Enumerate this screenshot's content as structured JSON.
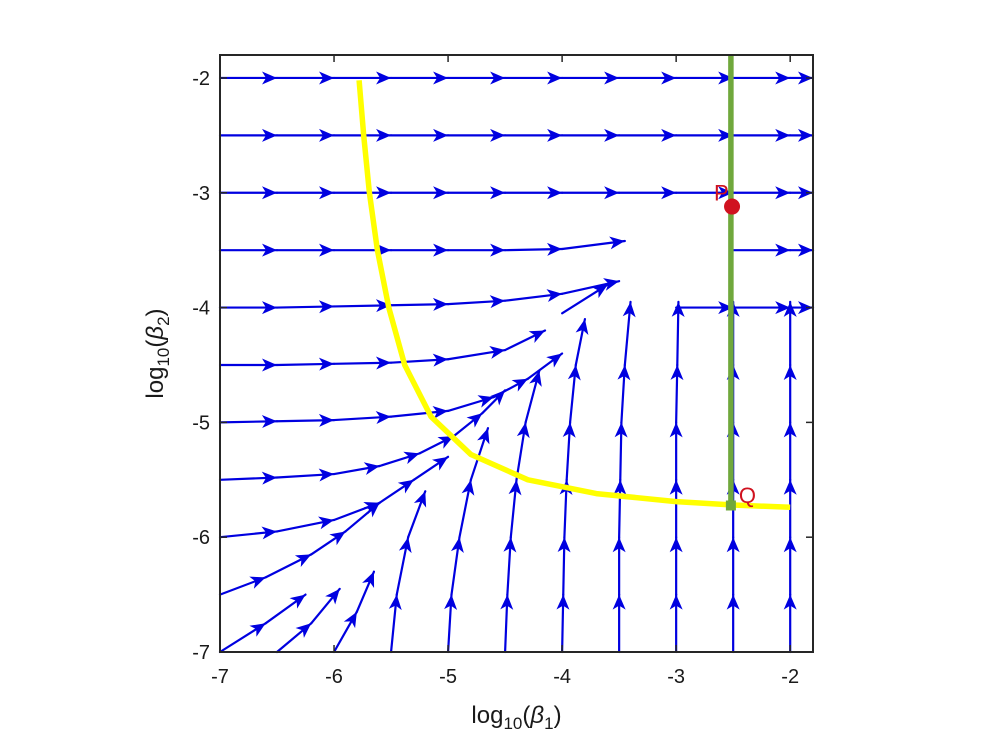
{
  "chart_data": {
    "type": "quiver",
    "title": "",
    "xlabel": {
      "base": "log",
      "sub": "10",
      "open": "(",
      "symbol": "β",
      "symbol_sub": "1",
      "close": ")"
    },
    "ylabel": {
      "base": "log",
      "sub": "10",
      "open": "(",
      "symbol": "β",
      "symbol_sub": "2",
      "close": ")"
    },
    "xlim": [
      -7,
      -1.8
    ],
    "ylim": [
      -7,
      -1.8
    ],
    "xticks": [
      -7,
      -6,
      -5,
      -4,
      -3,
      -2
    ],
    "yticks": [
      -7,
      -6,
      -5,
      -4,
      -3,
      -2
    ],
    "xtick_labels": [
      "-7",
      "-6",
      "-5",
      "-4",
      "-3",
      "-2"
    ],
    "ytick_labels": [
      "-7",
      "-6",
      "-5",
      "-4",
      "-3",
      "-2"
    ],
    "grid": false,
    "legend": "none",
    "vector_field": {
      "color": "#0000e0",
      "description_rows": [
        {
          "y0": -2.0,
          "segments": [
            [
              -7,
              -2.0,
              -6.5,
              -2.0
            ],
            [
              -6.5,
              -2.0,
              -6.0,
              -2.0
            ],
            [
              -6.0,
              -2.0,
              -5.5,
              -2.0
            ],
            [
              -5.5,
              -2.0,
              -5.0,
              -2.0
            ],
            [
              -5.0,
              -2.0,
              -4.5,
              -2.0
            ],
            [
              -4.5,
              -2.0,
              -4.0,
              -2.0
            ],
            [
              -4.0,
              -2.0,
              -3.5,
              -2.0
            ],
            [
              -3.5,
              -2.0,
              -3.0,
              -2.0
            ],
            [
              -3.0,
              -2.0,
              -2.5,
              -2.0
            ],
            [
              -2.5,
              -2.0,
              -2.0,
              -2.0
            ],
            [
              -2.0,
              -2.0,
              -1.8,
              -2.0
            ]
          ]
        },
        {
          "y0": -2.5,
          "segments": [
            [
              -7,
              -2.5,
              -6.5,
              -2.5
            ],
            [
              -6.5,
              -2.5,
              -6.0,
              -2.5
            ],
            [
              -6.0,
              -2.5,
              -5.5,
              -2.5
            ],
            [
              -5.5,
              -2.5,
              -5.0,
              -2.5
            ],
            [
              -5.0,
              -2.5,
              -4.5,
              -2.5
            ],
            [
              -4.5,
              -2.5,
              -4.0,
              -2.5
            ],
            [
              -4.0,
              -2.5,
              -3.5,
              -2.5
            ],
            [
              -3.5,
              -2.5,
              -3.0,
              -2.5
            ],
            [
              -3.0,
              -2.5,
              -2.5,
              -2.5
            ],
            [
              -2.5,
              -2.5,
              -2.0,
              -2.5
            ],
            [
              -2.0,
              -2.5,
              -1.8,
              -2.5
            ]
          ]
        },
        {
          "y0": -3.0,
          "segments": [
            [
              -7,
              -3.0,
              -6.5,
              -3.0
            ],
            [
              -6.5,
              -3.0,
              -6.0,
              -3.0
            ],
            [
              -6.0,
              -3.0,
              -5.5,
              -3.0
            ],
            [
              -5.5,
              -3.0,
              -5.0,
              -3.0
            ],
            [
              -5.0,
              -3.0,
              -4.5,
              -3.0
            ],
            [
              -4.5,
              -3.0,
              -4.0,
              -3.0
            ],
            [
              -4.0,
              -3.0,
              -3.5,
              -3.0
            ],
            [
              -3.5,
              -3.0,
              -3.0,
              -3.0
            ],
            [
              -3.0,
              -3.0,
              -2.5,
              -3.0
            ],
            [
              -2.5,
              -3.0,
              -2.0,
              -3.0
            ],
            [
              -2.0,
              -3.0,
              -1.8,
              -3.0
            ]
          ]
        },
        {
          "y0": -3.5,
          "segments": [
            [
              -7,
              -3.5,
              -6.5,
              -3.5
            ],
            [
              -6.5,
              -3.5,
              -6.0,
              -3.5
            ],
            [
              -6.0,
              -3.5,
              -5.5,
              -3.5
            ],
            [
              -5.5,
              -3.5,
              -5.0,
              -3.5
            ],
            [
              -5.0,
              -3.5,
              -4.5,
              -3.5
            ],
            [
              -4.5,
              -3.5,
              -4.0,
              -3.49
            ],
            [
              -4.0,
              -3.49,
              -3.45,
              -3.42
            ],
            [
              -2.5,
              -3.5,
              -2.0,
              -3.5
            ],
            [
              -2.0,
              -3.5,
              -1.8,
              -3.5
            ]
          ]
        },
        {
          "y0": -4.0,
          "segments": [
            [
              -7,
              -4.0,
              -6.5,
              -4.0
            ],
            [
              -6.5,
              -4.0,
              -6.0,
              -3.99
            ],
            [
              -6.0,
              -3.99,
              -5.5,
              -3.98
            ],
            [
              -5.5,
              -3.98,
              -5.0,
              -3.97
            ],
            [
              -5.0,
              -3.97,
              -4.5,
              -3.94
            ],
            [
              -4.5,
              -3.94,
              -4.0,
              -3.88
            ],
            [
              -4.0,
              -3.88,
              -3.5,
              -3.77
            ],
            [
              -3.0,
              -4.0,
              -2.5,
              -4.0
            ],
            [
              -2.5,
              -4.0,
              -2.0,
              -4.0
            ],
            [
              -2.0,
              -4.0,
              -1.8,
              -4.0
            ]
          ]
        },
        {
          "y0": -4.5,
          "segments": [
            [
              -7,
              -4.5,
              -6.5,
              -4.5
            ],
            [
              -6.5,
              -4.5,
              -6.0,
              -4.49
            ],
            [
              -6.0,
              -4.49,
              -5.5,
              -4.48
            ],
            [
              -5.5,
              -4.48,
              -5.0,
              -4.45
            ],
            [
              -5.0,
              -4.45,
              -4.5,
              -4.37
            ],
            [
              -4.5,
              -4.37,
              -4.15,
              -4.2
            ],
            [
              -4.0,
              -4.05,
              -3.6,
              -3.8
            ]
          ]
        },
        {
          "y0": -5.0,
          "segments": [
            [
              -7,
              -5.0,
              -6.5,
              -4.99
            ],
            [
              -6.5,
              -4.99,
              -6.0,
              -4.98
            ],
            [
              -6.0,
              -4.98,
              -5.5,
              -4.95
            ],
            [
              -5.5,
              -4.95,
              -5.0,
              -4.9
            ],
            [
              -5.0,
              -4.9,
              -4.6,
              -4.78
            ],
            [
              -4.6,
              -4.78,
              -4.3,
              -4.62
            ],
            [
              -4.3,
              -4.62,
              -4.0,
              -4.4
            ]
          ]
        },
        {
          "y0": -5.5,
          "segments": [
            [
              -7,
              -5.5,
              -6.5,
              -5.48
            ],
            [
              -6.5,
              -5.48,
              -6.0,
              -5.45
            ],
            [
              -6.0,
              -5.45,
              -5.6,
              -5.38
            ],
            [
              -5.6,
              -5.38,
              -5.25,
              -5.27
            ],
            [
              -5.25,
              -5.27,
              -4.95,
              -5.12
            ],
            [
              -4.95,
              -5.12,
              -4.7,
              -4.92
            ],
            [
              -4.7,
              -4.92,
              -4.5,
              -4.72
            ]
          ]
        },
        {
          "y0": -6.0,
          "segments": [
            [
              -7,
              -6.0,
              -6.5,
              -5.95
            ],
            [
              -6.5,
              -5.95,
              -6.0,
              -5.85
            ],
            [
              -6.0,
              -5.85,
              -5.6,
              -5.7
            ],
            [
              -5.6,
              -5.7,
              -5.3,
              -5.5
            ],
            [
              -5.3,
              -5.5,
              -5.0,
              -5.3
            ]
          ]
        },
        {
          "y0": -6.5,
          "segments": [
            [
              -7,
              -6.5,
              -6.6,
              -6.35
            ],
            [
              -6.6,
              -6.35,
              -6.2,
              -6.15
            ],
            [
              -6.2,
              -6.15,
              -5.9,
              -5.95
            ],
            [
              -5.9,
              -5.95,
              -5.6,
              -5.7
            ]
          ]
        },
        {
          "y0": -7.0,
          "segments": [
            [
              -7,
              -7.0,
              -6.6,
              -6.75
            ],
            [
              -6.6,
              -6.75,
              -6.25,
              -6.5
            ],
            [
              -6.5,
              -7.0,
              -6.2,
              -6.75
            ],
            [
              -6.2,
              -6.75,
              -5.95,
              -6.45
            ],
            [
              -6.0,
              -7.0,
              -5.8,
              -6.65
            ],
            [
              -5.8,
              -6.65,
              -5.65,
              -6.3
            ]
          ]
        }
      ],
      "columns": [
        {
          "x0": -5.5,
          "segments": [
            [
              -5.5,
              -7.0,
              -5.45,
              -6.5
            ],
            [
              -5.45,
              -6.5,
              -5.35,
              -6.0
            ],
            [
              -5.35,
              -6.0,
              -5.2,
              -5.6
            ]
          ]
        },
        {
          "x0": -5.0,
          "segments": [
            [
              -5.0,
              -7.0,
              -4.97,
              -6.5
            ],
            [
              -4.97,
              -6.5,
              -4.9,
              -6.0
            ],
            [
              -4.9,
              -6.0,
              -4.8,
              -5.5
            ],
            [
              -4.8,
              -5.5,
              -4.65,
              -5.05
            ]
          ]
        },
        {
          "x0": -4.5,
          "segments": [
            [
              -4.5,
              -7.0,
              -4.48,
              -6.5
            ],
            [
              -4.48,
              -6.5,
              -4.45,
              -6.0
            ],
            [
              -4.45,
              -6.0,
              -4.4,
              -5.5
            ],
            [
              -4.4,
              -5.5,
              -4.32,
              -5.0
            ],
            [
              -4.32,
              -5.0,
              -4.2,
              -4.55
            ]
          ]
        },
        {
          "x0": -4.0,
          "segments": [
            [
              -4.0,
              -7.0,
              -3.99,
              -6.5
            ],
            [
              -3.99,
              -6.5,
              -3.98,
              -6.0
            ],
            [
              -3.98,
              -6.0,
              -3.96,
              -5.5
            ],
            [
              -3.96,
              -5.5,
              -3.93,
              -5.0
            ],
            [
              -3.93,
              -5.0,
              -3.88,
              -4.5
            ],
            [
              -3.88,
              -4.5,
              -3.8,
              -4.1
            ]
          ]
        },
        {
          "x0": -3.5,
          "segments": [
            [
              -3.5,
              -7.0,
              -3.5,
              -6.5
            ],
            [
              -3.5,
              -6.5,
              -3.5,
              -6.0
            ],
            [
              -3.5,
              -6.0,
              -3.49,
              -5.5
            ],
            [
              -3.49,
              -5.5,
              -3.48,
              -5.0
            ],
            [
              -3.48,
              -5.0,
              -3.45,
              -4.5
            ],
            [
              -3.45,
              -4.5,
              -3.4,
              -3.95
            ]
          ]
        },
        {
          "x0": -3.0,
          "segments": [
            [
              -3.0,
              -7.0,
              -3.0,
              -6.5
            ],
            [
              -3.0,
              -6.5,
              -3.0,
              -6.0
            ],
            [
              -3.0,
              -6.0,
              -3.0,
              -5.5
            ],
            [
              -3.0,
              -5.5,
              -3.0,
              -5.0
            ],
            [
              -3.0,
              -5.0,
              -2.99,
              -4.5
            ],
            [
              -2.99,
              -4.5,
              -2.98,
              -3.95
            ]
          ]
        },
        {
          "x0": -2.5,
          "segments": [
            [
              -2.5,
              -7.0,
              -2.5,
              -6.5
            ],
            [
              -2.5,
              -6.5,
              -2.5,
              -6.0
            ],
            [
              -2.5,
              -6.0,
              -2.5,
              -5.5
            ],
            [
              -2.5,
              -5.5,
              -2.5,
              -5.0
            ],
            [
              -2.5,
              -5.0,
              -2.5,
              -4.5
            ],
            [
              -2.5,
              -4.5,
              -2.5,
              -3.95
            ]
          ]
        },
        {
          "x0": -2.0,
          "segments": [
            [
              -2.0,
              -7.0,
              -2.0,
              -6.5
            ],
            [
              -2.0,
              -6.5,
              -2.0,
              -6.0
            ],
            [
              -2.0,
              -6.0,
              -2.0,
              -5.5
            ],
            [
              -2.0,
              -5.5,
              -2.0,
              -5.0
            ],
            [
              -2.0,
              -5.0,
              -2.0,
              -4.5
            ],
            [
              -2.0,
              -4.5,
              -2.0,
              -3.95
            ]
          ]
        }
      ]
    },
    "curves": [
      {
        "id": "yellow-curve",
        "color": "#ffff00",
        "points": [
          [
            -5.78,
            -2.02
          ],
          [
            -5.74,
            -2.5
          ],
          [
            -5.69,
            -3.0
          ],
          [
            -5.62,
            -3.5
          ],
          [
            -5.52,
            -4.0
          ],
          [
            -5.38,
            -4.5
          ],
          [
            -5.15,
            -4.95
          ],
          [
            -4.8,
            -5.28
          ],
          [
            -4.3,
            -5.5
          ],
          [
            -3.7,
            -5.62
          ],
          [
            -3.0,
            -5.69
          ],
          [
            -2.5,
            -5.72
          ],
          [
            -2.0,
            -5.74
          ]
        ]
      },
      {
        "id": "green-curve",
        "color": "#70a83c",
        "points": [
          [
            -2.52,
            -1.8
          ],
          [
            -2.52,
            -5.75
          ]
        ]
      }
    ],
    "markers": [
      {
        "id": "point-p",
        "label": "P",
        "x": -2.51,
        "y": -3.12,
        "color": "#d0121f"
      },
      {
        "id": "point-q",
        "label": "Q",
        "x": -2.52,
        "y": -5.72,
        "color": "#d0121f"
      }
    ]
  }
}
